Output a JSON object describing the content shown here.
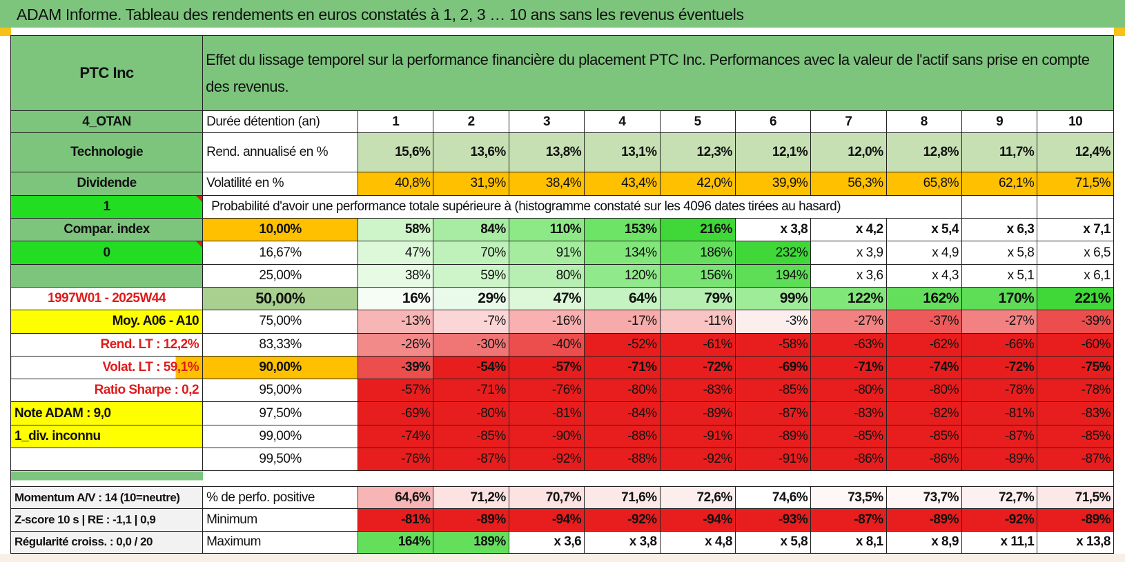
{
  "title": "ADAM Informe. Tableau des rendements en euros constatés à 1, 2, 3 … 10 ans sans les revenus éventuels",
  "colors": {
    "green_header": "#7dc57d",
    "bright_green": "#22dd22",
    "yellow": "#ffff00",
    "orange": "#ffc000",
    "red_text": "#e01b1b"
  },
  "asset": "PTC Inc",
  "header_text": "Effet du lissage temporel sur la performance financière du placement PTC Inc. Performances avec la valeur de l'actif sans prise en compte des revenus.",
  "left": {
    "code": "4_OTAN",
    "sector": "Technologie",
    "dividend_label": "Dividende",
    "flag_1": "1",
    "compar_index": "Compar. index",
    "flag_0": "0",
    "period": "1997W01 - 2025W44",
    "moy": "Moy. A06 - A10",
    "rend_lt": "Rend. LT :    12,2%",
    "volat_lt": "Volat. LT :    59,1%",
    "ratio_sharpe": "Ratio Sharpe :    0,2",
    "note_adam": "Note ADAM : 9,0",
    "div_inconnu": "1_div. inconnu",
    "momentum": "Momentum A/V : 14 (10=neutre)",
    "zscore": "Z-score 10 s | RE : -1,1 | 0,9",
    "regularite": "Régularité croiss. : 0,0 / 20"
  },
  "row_labels": {
    "duree": "Durée détention (an)",
    "rend": "Rend. annualisé en %",
    "volat": "Volatilité en %",
    "proba": "Probabilité d'avoir une performance totale supérieure à (histogramme constaté sur les 4096 dates tirées au hasard)",
    "perf_pos": "% de perfo. positive",
    "minimum": "Minimum",
    "maximum": "Maximum"
  },
  "years": [
    "1",
    "2",
    "3",
    "4",
    "5",
    "6",
    "7",
    "8",
    "9",
    "10"
  ],
  "rend": [
    "15,6%",
    "13,6%",
    "13,8%",
    "13,1%",
    "12,3%",
    "12,1%",
    "12,0%",
    "12,8%",
    "11,7%",
    "12,4%"
  ],
  "volat": [
    "40,8%",
    "31,9%",
    "38,4%",
    "43,4%",
    "42,0%",
    "39,9%",
    "56,3%",
    "65,8%",
    "62,1%",
    "71,5%"
  ],
  "prob_rows": [
    {
      "p": "10,00%",
      "bold": true,
      "pbg": "#ffc000",
      "vals": [
        "58%",
        "84%",
        "110%",
        "153%",
        "216%",
        "x 3,8",
        "x 4,2",
        "x 5,4",
        "x 6,3",
        "x 7,1"
      ],
      "bgs": [
        "#cdf5c9",
        "#a8eca3",
        "#8de986",
        "#6de466",
        "#3fd838",
        "#ffffff",
        "#ffffff",
        "#ffffff",
        "#ffffff",
        "#ffffff"
      ]
    },
    {
      "p": "16,67%",
      "bold": false,
      "pbg": "#ffffff",
      "vals": [
        "47%",
        "70%",
        "91%",
        "134%",
        "186%",
        "232%",
        "x 3,9",
        "x 4,9",
        "x 5,8",
        "x 6,5"
      ],
      "bgs": [
        "#dcf8d9",
        "#bff1bb",
        "#a5ec9f",
        "#82e77b",
        "#63df5c",
        "#3fd838",
        "#ffffff",
        "#ffffff",
        "#ffffff",
        "#ffffff"
      ]
    },
    {
      "p": "25,00%",
      "bold": false,
      "pbg": "#ffffff",
      "vals": [
        "38%",
        "59%",
        "80%",
        "120%",
        "156%",
        "194%",
        "x 3,6",
        "x 4,3",
        "x 5,1",
        "x 6,1"
      ],
      "bgs": [
        "#e6fae4",
        "#cdf5c9",
        "#b6efb1",
        "#90e98a",
        "#79e472",
        "#5edd57",
        "#ffffff",
        "#ffffff",
        "#ffffff",
        "#ffffff"
      ]
    },
    {
      "p": "50,00%",
      "bold": true,
      "pbg": "#a9d08e",
      "vals": [
        "16%",
        "29%",
        "47%",
        "64%",
        "79%",
        "99%",
        "122%",
        "162%",
        "170%",
        "221%"
      ],
      "bgs": [
        "#f6fdf5",
        "#eafaea",
        "#dcf8d9",
        "#c6f3c2",
        "#b6efb1",
        "#9eeb98",
        "#82e77b",
        "#63df5c",
        "#5edd57",
        "#3fd838"
      ]
    },
    {
      "p": "75,00%",
      "bold": false,
      "pbg": "#ffffff",
      "vals": [
        "-13%",
        "-7%",
        "-16%",
        "-17%",
        "-11%",
        "-3%",
        "-27%",
        "-37%",
        "-27%",
        "-39%"
      ],
      "bgs": [
        "#f8b5b5",
        "#fbd6d6",
        "#f8b0b0",
        "#f7aaaa",
        "#f9c4c4",
        "#fdeeee",
        "#f28282",
        "#ee5a5a",
        "#f28282",
        "#ec4e4e"
      ]
    },
    {
      "p": "83,33%",
      "bold": false,
      "pbg": "#ffffff",
      "vals": [
        "-26%",
        "-30%",
        "-40%",
        "-52%",
        "-61%",
        "-58%",
        "-63%",
        "-62%",
        "-66%",
        "-60%"
      ],
      "bgs": [
        "#f28a8a",
        "#f07575",
        "#ec4e4e",
        "#e81e1e",
        "#e81e1e",
        "#e81e1e",
        "#e81e1e",
        "#e81e1e",
        "#e81e1e",
        "#e81e1e"
      ]
    },
    {
      "p": "90,00%",
      "bold": true,
      "pbg": "#ffc000",
      "vals": [
        "-39%",
        "-54%",
        "-57%",
        "-71%",
        "-72%",
        "-69%",
        "-71%",
        "-74%",
        "-72%",
        "-75%"
      ],
      "bgs": [
        "#ec4e4e",
        "#e81e1e",
        "#e81e1e",
        "#e81e1e",
        "#e81e1e",
        "#e81e1e",
        "#e81e1e",
        "#e81e1e",
        "#e81e1e",
        "#e81e1e"
      ]
    },
    {
      "p": "95,00%",
      "bold": false,
      "pbg": "#ffffff",
      "vals": [
        "-57%",
        "-71%",
        "-76%",
        "-80%",
        "-83%",
        "-85%",
        "-80%",
        "-80%",
        "-78%",
        "-78%"
      ],
      "bgs": [
        "#e81e1e",
        "#e81e1e",
        "#e81e1e",
        "#e81e1e",
        "#e81e1e",
        "#e81e1e",
        "#e81e1e",
        "#e81e1e",
        "#e81e1e",
        "#e81e1e"
      ]
    },
    {
      "p": "97,50%",
      "bold": false,
      "pbg": "#ffffff",
      "vals": [
        "-69%",
        "-80%",
        "-81%",
        "-84%",
        "-89%",
        "-87%",
        "-83%",
        "-82%",
        "-81%",
        "-83%"
      ],
      "bgs": [
        "#e81e1e",
        "#e81e1e",
        "#e81e1e",
        "#e81e1e",
        "#e81e1e",
        "#e81e1e",
        "#e81e1e",
        "#e81e1e",
        "#e81e1e",
        "#e81e1e"
      ]
    },
    {
      "p": "99,00%",
      "bold": false,
      "pbg": "#ffffff",
      "vals": [
        "-74%",
        "-85%",
        "-90%",
        "-88%",
        "-91%",
        "-89%",
        "-85%",
        "-85%",
        "-87%",
        "-85%"
      ],
      "bgs": [
        "#e81e1e",
        "#e81e1e",
        "#e81e1e",
        "#e81e1e",
        "#e81e1e",
        "#e81e1e",
        "#e81e1e",
        "#e81e1e",
        "#e81e1e",
        "#e81e1e"
      ]
    },
    {
      "p": "99,50%",
      "bold": false,
      "pbg": "#ffffff",
      "vals": [
        "-76%",
        "-87%",
        "-92%",
        "-88%",
        "-92%",
        "-91%",
        "-86%",
        "-86%",
        "-89%",
        "-87%"
      ],
      "bgs": [
        "#e81e1e",
        "#e81e1e",
        "#e81e1e",
        "#e81e1e",
        "#e81e1e",
        "#e81e1e",
        "#e81e1e",
        "#e81e1e",
        "#e81e1e",
        "#e81e1e"
      ]
    }
  ],
  "perf_pos": [
    "64,6%",
    "71,2%",
    "70,7%",
    "71,6%",
    "72,6%",
    "74,6%",
    "73,5%",
    "73,7%",
    "72,7%",
    "71,5%"
  ],
  "perf_pos_bgs": [
    "#f8b5b5",
    "#fde2e2",
    "#fde2e2",
    "#fde8e8",
    "#fdeeee",
    "#ffffff",
    "#fff6f6",
    "#fff6f6",
    "#fdf0f0",
    "#fde8e8"
  ],
  "minimum": [
    "-81%",
    "-89%",
    "-94%",
    "-92%",
    "-94%",
    "-93%",
    "-87%",
    "-89%",
    "-92%",
    "-89%"
  ],
  "maximum": [
    "164%",
    "189%",
    "x 3,6",
    "x 3,8",
    "x 4,8",
    "x 5,8",
    "x 8,1",
    "x 8,9",
    "x 11,1",
    "x 13,8"
  ],
  "maximum_bgs": [
    "#63df5c",
    "#63df5c",
    "#ffffff",
    "#ffffff",
    "#ffffff",
    "#ffffff",
    "#ffffff",
    "#ffffff",
    "#ffffff",
    "#ffffff"
  ]
}
